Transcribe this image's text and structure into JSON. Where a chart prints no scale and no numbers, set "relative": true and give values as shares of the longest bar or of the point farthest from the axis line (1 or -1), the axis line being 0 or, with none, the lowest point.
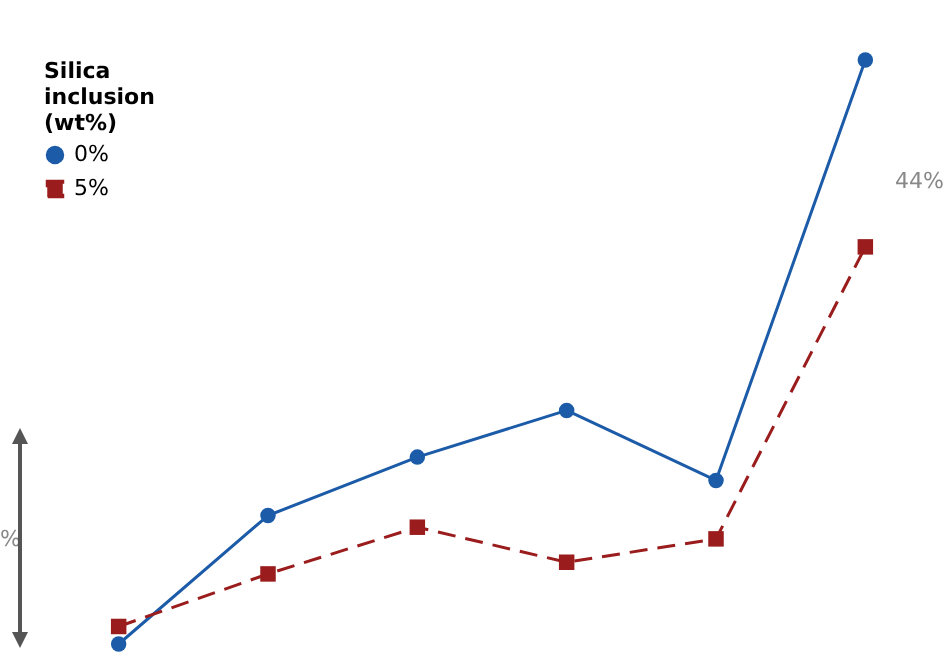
{
  "chart_data": {
    "type": "line",
    "relative": true,
    "legend_title": "Silica inclusion (wt%)",
    "legend": "top left",
    "categories": [
      null,
      null,
      null,
      null,
      null,
      null
    ],
    "series": [
      {
        "name": "0%",
        "color": "#1c5ba8",
        "marker": "circle",
        "line_style": "solid",
        "values": [
          0,
          0.22,
          0.32,
          0.4,
          0.28,
          1
        ]
      },
      {
        "name": "5%",
        "color": "#9a1c1c",
        "marker": "square",
        "line_style": "dashed",
        "values": [
          0.03,
          0.12,
          0.2,
          0.14,
          0.18,
          0.68
        ]
      }
    ],
    "annotations": [
      "44%",
      "%"
    ]
  }
}
